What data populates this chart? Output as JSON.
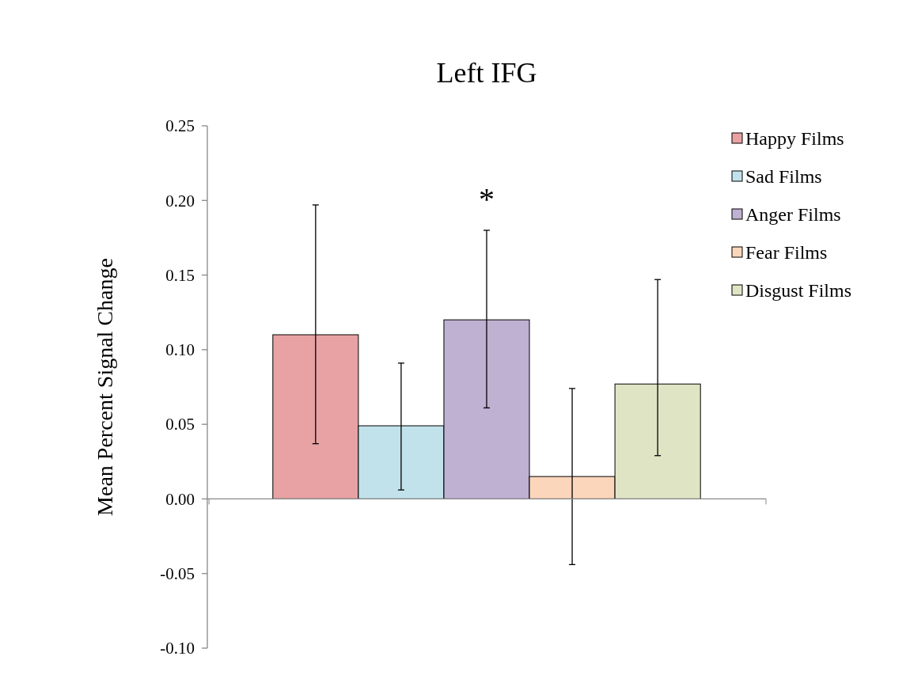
{
  "chart_data": {
    "type": "bar",
    "title": "Left IFG",
    "ylabel": "Mean Percent Signal Change",
    "categories": [
      null
    ],
    "series": [
      {
        "name": "Happy Films",
        "color": "#e8a2a4",
        "values": [
          0.11
        ],
        "errors": [
          [
            0.037,
            0.197
          ]
        ]
      },
      {
        "name": "Sad Films",
        "color": "#c1e2ea",
        "values": [
          0.049
        ],
        "errors": [
          [
            0.006,
            0.091
          ]
        ]
      },
      {
        "name": "Anger Films",
        "color": "#bfb1d2",
        "values": [
          0.12
        ],
        "errors": [
          [
            0.061,
            0.18
          ]
        ]
      },
      {
        "name": "Fear Films",
        "color": "#fcd6bb",
        "values": [
          0.015
        ],
        "errors": [
          [
            -0.044,
            0.074
          ]
        ]
      },
      {
        "name": "Disgust Films",
        "color": "#dfe5c4",
        "values": [
          0.077
        ],
        "errors": [
          [
            0.029,
            0.147
          ]
        ]
      }
    ],
    "ylim": [
      -0.1,
      0.25
    ],
    "yticks": [
      {
        "value": -0.1,
        "label": "-0.10"
      },
      {
        "value": -0.05,
        "label": "-0.05"
      },
      {
        "value": 0,
        "label": "0.00"
      },
      {
        "value": 0.05,
        "label": "0.05"
      },
      {
        "value": 0.1,
        "label": "0.10"
      },
      {
        "value": 0.15,
        "label": "0.15"
      },
      {
        "value": 0.2,
        "label": "0.20"
      },
      {
        "value": 0.25,
        "label": "0.25"
      }
    ],
    "annotations": [
      "*"
    ],
    "legend": "top right"
  }
}
